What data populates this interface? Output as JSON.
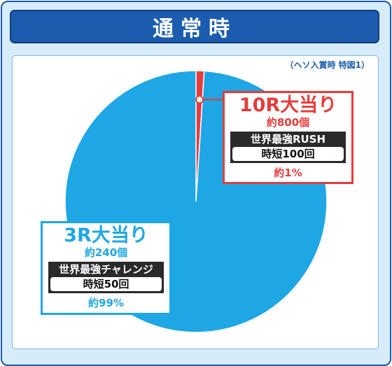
{
  "header": {
    "title": "通常時"
  },
  "note": "（ヘソ入賞時 特図1）",
  "colors": {
    "frame_bg": "#d6ecfa",
    "header_bg": "#1b5cae",
    "large_slice": "#1fa6e4",
    "small_slice": "#e53c3c"
  },
  "chart_data": {
    "type": "pie",
    "title": "",
    "slices": [
      {
        "title": "10R大当り",
        "detail": "約800個",
        "mode": "世界最強RUSH",
        "time": "時短100回",
        "pct_label": "約1%",
        "value": 1,
        "color": "#e53c3c"
      },
      {
        "title": "3R大当り",
        "detail": "約240個",
        "mode": "世界最強チャレンジ",
        "time": "時短50回",
        "pct_label": "約99%",
        "value": 99,
        "color": "#1fa6e4"
      }
    ]
  }
}
